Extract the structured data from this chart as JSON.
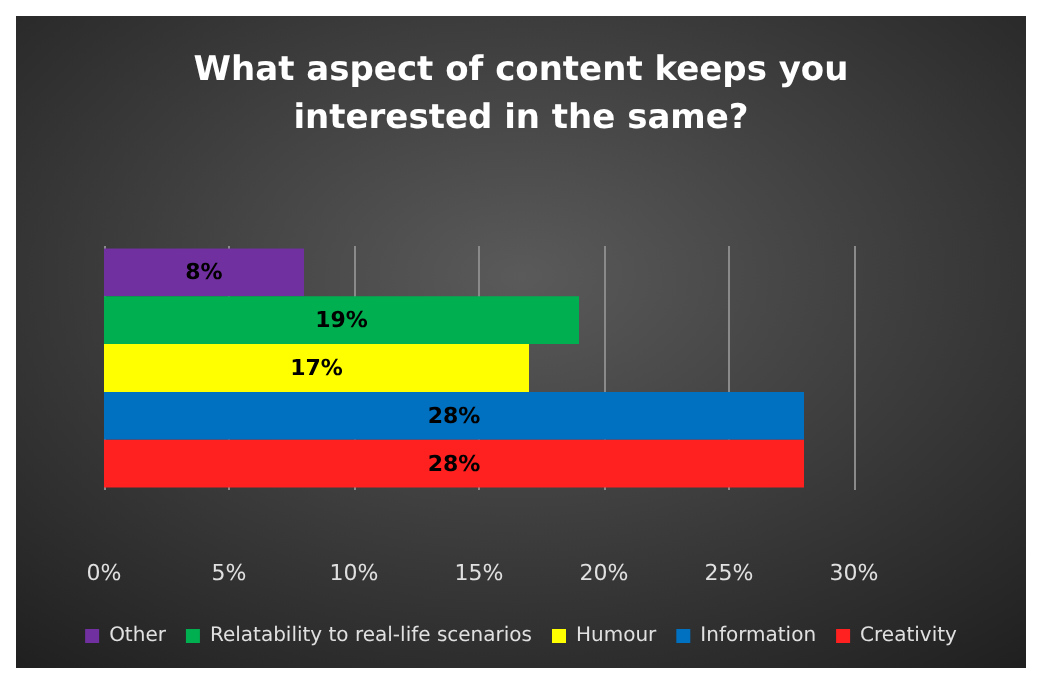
{
  "chart_data": {
    "type": "bar",
    "orientation": "horizontal",
    "title": "What aspect of content keeps you\ninterested in the same?",
    "categories": [
      null
    ],
    "series": [
      {
        "name": "Other",
        "color": "#7030a0",
        "values": [
          8
        ],
        "value_labels": [
          "8%"
        ]
      },
      {
        "name": "Relatability to real-life scenarios",
        "color": "#00b050",
        "values": [
          19
        ],
        "value_labels": [
          "19%"
        ]
      },
      {
        "name": "Humour",
        "color": "#ffff00",
        "values": [
          17
        ],
        "value_labels": [
          "17%"
        ]
      },
      {
        "name": "Information",
        "color": "#0070c0",
        "values": [
          28
        ],
        "value_labels": [
          "28%"
        ]
      },
      {
        "name": "Creativity",
        "color": "#ff2020",
        "values": [
          28
        ],
        "value_labels": [
          "28%"
        ]
      }
    ],
    "xlim": [
      0,
      30
    ],
    "xticks": [
      {
        "value": 0,
        "label": "0%"
      },
      {
        "value": 5,
        "label": "5%"
      },
      {
        "value": 10,
        "label": "10%"
      },
      {
        "value": 15,
        "label": "15%"
      },
      {
        "value": 20,
        "label": "20%"
      },
      {
        "value": 25,
        "label": "25%"
      },
      {
        "value": 30,
        "label": "30%"
      }
    ],
    "grid": "x",
    "legend": "bottom"
  }
}
